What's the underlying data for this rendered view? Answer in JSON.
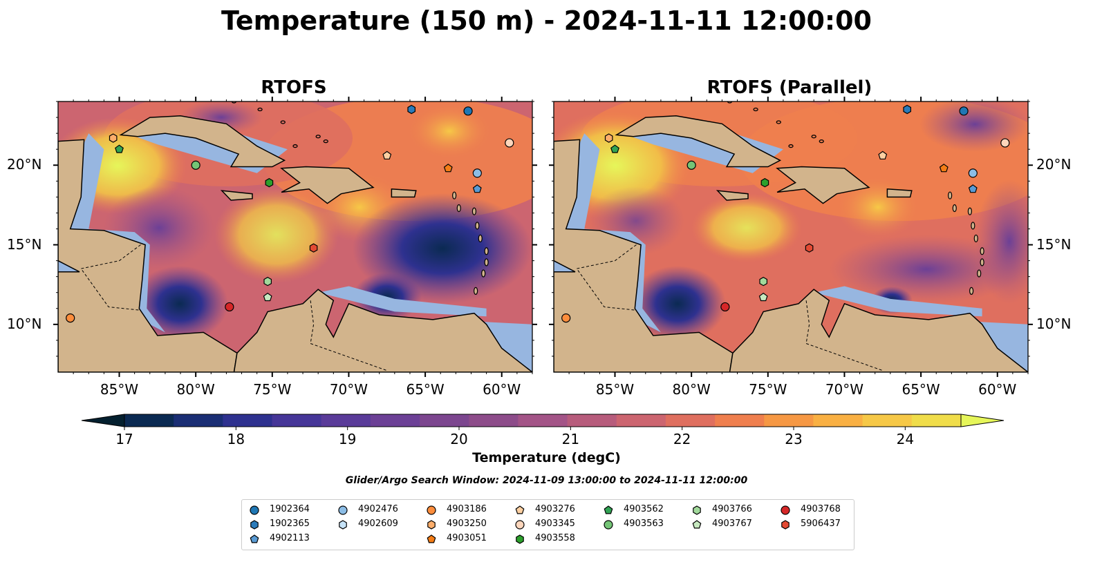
{
  "figure": {
    "title": "Temperature (150 m) - 2024-11-11 12:00:00"
  },
  "panels": [
    {
      "title": "RTOFS",
      "variant": "rtofs"
    },
    {
      "title": "RTOFS (Parallel)",
      "variant": "parallel"
    }
  ],
  "axes": {
    "lon_ticks": [
      "85°W",
      "80°W",
      "75°W",
      "70°W",
      "65°W",
      "60°W"
    ],
    "lat_ticks": [
      "20°N",
      "15°N",
      "10°N"
    ],
    "lon_range": [
      -89,
      -58
    ],
    "lat_range": [
      7,
      24
    ]
  },
  "colorbar": {
    "label": "Temperature (degC)",
    "ticks": [
      "17",
      "18",
      "19",
      "20",
      "21",
      "22",
      "23",
      "24"
    ],
    "range": [
      16.5,
      24.5
    ],
    "extend": "both",
    "colors": [
      "#04202f",
      "#0b2a52",
      "#1a2e74",
      "#2e318f",
      "#463698",
      "#5a3b99",
      "#6c4096",
      "#7c468f",
      "#8d4c8a",
      "#a35487",
      "#b75c7c",
      "#cc6570",
      "#df6f5f",
      "#ef7f4e",
      "#f69844",
      "#f9b043",
      "#f6c847",
      "#f0dd4a",
      "#e6f65a"
    ]
  },
  "colors": {
    "land": "#d2b48c",
    "shelf": "#97b6e0",
    "deep": "#04202f"
  },
  "search_window": "Glider/Argo Search Window: 2024-11-09 13:00:00 to 2024-11-11 12:00:00",
  "legend": {
    "columns": [
      [
        {
          "id": "1902364",
          "marker": "circle",
          "color": "#1f77b4"
        },
        {
          "id": "1902365",
          "marker": "hexagon",
          "color": "#2b7bba"
        },
        {
          "id": "4902113",
          "marker": "pentagon",
          "color": "#5a9bd4"
        }
      ],
      [
        {
          "id": "4902476",
          "marker": "circle",
          "color": "#8cbde6"
        },
        {
          "id": "4902609",
          "marker": "hexagon",
          "color": "#c6e3f8"
        }
      ],
      [
        {
          "id": "4903186",
          "marker": "circle",
          "color": "#fd8d3c"
        },
        {
          "id": "4903250",
          "marker": "hexagon",
          "color": "#fdae6b"
        },
        {
          "id": "4903051",
          "marker": "pentagon",
          "color": "#f57d16"
        }
      ],
      [
        {
          "id": "4903276",
          "marker": "pentagon",
          "color": "#fdd0a2"
        },
        {
          "id": "4903345",
          "marker": "circle",
          "color": "#fdd6bc"
        },
        {
          "id": "4903558",
          "marker": "hexagon",
          "color": "#2ca02c"
        }
      ],
      [
        {
          "id": "4903562",
          "marker": "pentagon",
          "color": "#31a354"
        },
        {
          "id": "4903563",
          "marker": "circle",
          "color": "#74c476"
        }
      ],
      [
        {
          "id": "4903766",
          "marker": "hexagon",
          "color": "#a1d99b"
        },
        {
          "id": "4903767",
          "marker": "pentagon",
          "color": "#c7e9c0"
        }
      ],
      [
        {
          "id": "4903768",
          "marker": "circle",
          "color": "#d62728"
        },
        {
          "id": "5906437",
          "marker": "hexagon",
          "color": "#e34a33"
        }
      ]
    ]
  },
  "floats": [
    {
      "id": "1902364",
      "lon": -62.2,
      "lat": 23.4
    },
    {
      "id": "1902365",
      "lon": -65.9,
      "lat": 23.5
    },
    {
      "id": "4902113",
      "lon": -61.6,
      "lat": 18.5
    },
    {
      "id": "4902476",
      "lon": -61.6,
      "lat": 19.5
    },
    {
      "id": "4903186",
      "lon": -88.2,
      "lat": 10.4
    },
    {
      "id": "4903250",
      "lon": -85.4,
      "lat": 21.7
    },
    {
      "id": "4903051",
      "lon": -63.5,
      "lat": 19.8
    },
    {
      "id": "4903276",
      "lon": -67.5,
      "lat": 20.6
    },
    {
      "id": "4903345",
      "lon": -59.5,
      "lat": 21.4
    },
    {
      "id": "4903558",
      "lon": -75.2,
      "lat": 18.9
    },
    {
      "id": "4903562",
      "lon": -85.0,
      "lat": 21.0
    },
    {
      "id": "4903563",
      "lon": -80.0,
      "lat": 20.0
    },
    {
      "id": "4903766",
      "lon": -75.3,
      "lat": 12.7
    },
    {
      "id": "4903767",
      "lon": -75.3,
      "lat": 11.7
    },
    {
      "id": "4903768",
      "lon": -77.8,
      "lat": 11.1
    },
    {
      "id": "5906437",
      "lon": -72.3,
      "lat": 14.8
    }
  ]
}
